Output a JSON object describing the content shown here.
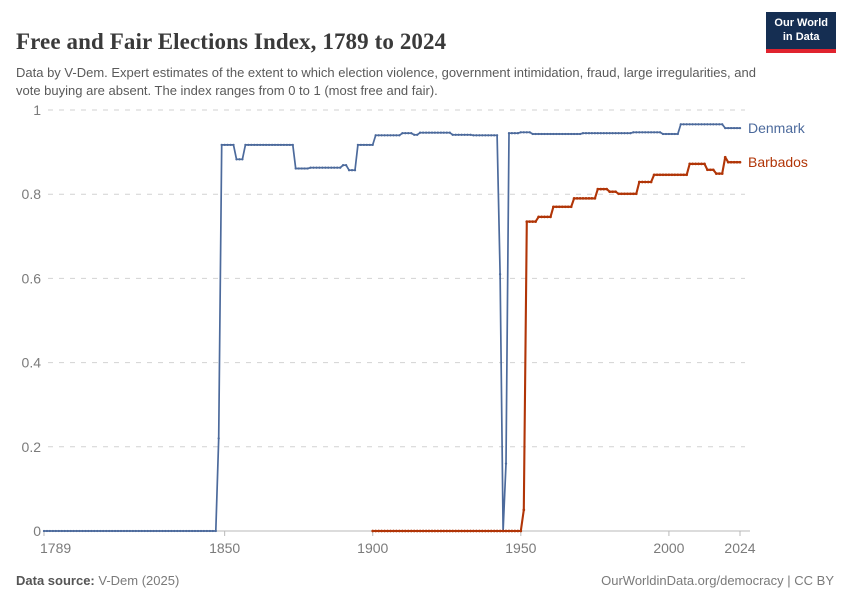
{
  "header": {
    "title": "Free and Fair Elections Index, 1789 to 2024",
    "subtitle": "Data by V-Dem. Expert estimates of the extent to which election violence, government intimidation, fraud, large irregularities, and vote buying are absent. The index ranges from 0 to 1 (most free and fair).",
    "logo": {
      "line1": "Our World",
      "line2": "in Data"
    }
  },
  "footer": {
    "source_label": "Data source:",
    "source_value": "V-Dem (2025)",
    "credit": "OurWorldinData.org/democracy | CC BY"
  },
  "chart_data": {
    "type": "line",
    "title": "Free and Fair Elections Index, 1789 to 2024",
    "xlabel": "",
    "ylabel": "",
    "xlim": [
      1789,
      2024
    ],
    "ylim": [
      0,
      1
    ],
    "x_ticks": [
      1789,
      1850,
      1900,
      1950,
      2000,
      2024
    ],
    "y_ticks": [
      0,
      0.2,
      0.4,
      0.6,
      0.8,
      1
    ],
    "y_tick_labels": [
      "0",
      "0.2",
      "0.4",
      "0.6",
      "0.8",
      "1"
    ],
    "grid": "horizontal-dashed",
    "legend_position": "line-end-labels",
    "marker": "yearly-dots",
    "segments_format": "[firstYear, lastYear, value] = constant index value for every year in the run",
    "series": [
      {
        "name": "Denmark",
        "color": "#4C6A9C",
        "segments": [
          [
            1789,
            1847,
            0
          ],
          [
            1848,
            1848,
            0.22
          ],
          [
            1849,
            1853,
            0.917
          ],
          [
            1854,
            1856,
            0.883
          ],
          [
            1857,
            1873,
            0.917
          ],
          [
            1874,
            1878,
            0.861
          ],
          [
            1879,
            1889,
            0.863
          ],
          [
            1890,
            1891,
            0.869
          ],
          [
            1892,
            1894,
            0.857
          ],
          [
            1895,
            1900,
            0.917
          ],
          [
            1901,
            1909,
            0.94
          ],
          [
            1910,
            1913,
            0.945
          ],
          [
            1914,
            1915,
            0.941
          ],
          [
            1916,
            1926,
            0.946
          ],
          [
            1927,
            1933,
            0.941
          ],
          [
            1934,
            1942,
            0.94
          ],
          [
            1943,
            1943,
            0.61
          ],
          [
            1944,
            1944,
            0
          ],
          [
            1945,
            1945,
            0.16
          ],
          [
            1946,
            1949,
            0.945
          ],
          [
            1950,
            1953,
            0.947
          ],
          [
            1954,
            1970,
            0.943
          ],
          [
            1971,
            1987,
            0.945
          ],
          [
            1988,
            1997,
            0.947
          ],
          [
            1998,
            2003,
            0.943
          ],
          [
            2004,
            2018,
            0.966
          ],
          [
            2019,
            2024,
            0.957
          ]
        ]
      },
      {
        "name": "Barbados",
        "color": "#B13507",
        "segments": [
          [
            1900,
            1950,
            0
          ],
          [
            1951,
            1951,
            0.05
          ],
          [
            1952,
            1955,
            0.735
          ],
          [
            1956,
            1960,
            0.746
          ],
          [
            1961,
            1967,
            0.77
          ],
          [
            1968,
            1975,
            0.79
          ],
          [
            1976,
            1979,
            0.812
          ],
          [
            1980,
            1982,
            0.806
          ],
          [
            1983,
            1989,
            0.801
          ],
          [
            1990,
            1994,
            0.829
          ],
          [
            1995,
            2006,
            0.846
          ],
          [
            2007,
            2012,
            0.872
          ],
          [
            2013,
            2015,
            0.858
          ],
          [
            2016,
            2018,
            0.849
          ],
          [
            2019,
            2019,
            0.888
          ],
          [
            2020,
            2024,
            0.876
          ]
        ]
      }
    ]
  }
}
